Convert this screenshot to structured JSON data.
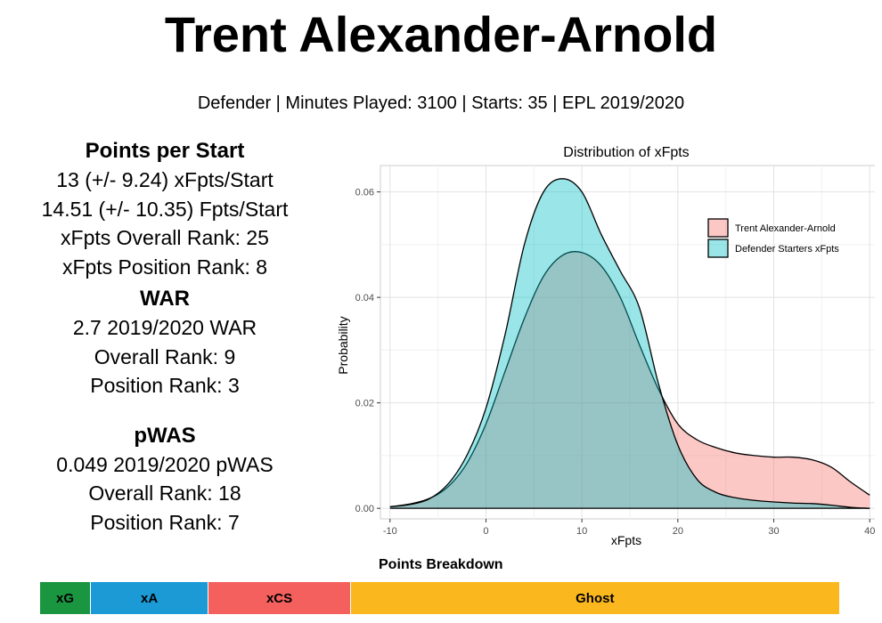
{
  "header": {
    "title": "Trent Alexander-Arnold",
    "subtitle": "Defender | Minutes Played: 3100 | Starts: 35 | EPL 2019/2020"
  },
  "stats": {
    "points_per_start": {
      "heading": "Points per Start",
      "lines": [
        "13 (+/- 9.24) xFpts/Start",
        "14.51 (+/- 10.35) Fpts/Start",
        "xFpts Overall Rank: 25",
        "xFpts Position Rank: 8"
      ]
    },
    "war": {
      "heading": "WAR",
      "lines": [
        "2.7 2019/2020 WAR",
        "Overall Rank: 9",
        "Position Rank: 3"
      ]
    },
    "pwas": {
      "heading": "pWAS",
      "lines": [
        "0.049 2019/2020 pWAS",
        "Overall Rank: 18",
        "Position Rank: 7"
      ]
    }
  },
  "chart_data": {
    "type": "area",
    "title": "Distribution of xFpts",
    "xlabel": "xFpts",
    "ylabel": "Probability",
    "xlim": [
      -11,
      41
    ],
    "ylim": [
      -0.002,
      0.065
    ],
    "xticks": [
      -10,
      0,
      10,
      20,
      30,
      40
    ],
    "yticks": [
      0.0,
      0.02,
      0.04,
      0.06
    ],
    "xtick_labels": [
      "-10",
      "0",
      "10",
      "20",
      "30",
      "40"
    ],
    "ytick_labels": [
      "0.00",
      "0.02",
      "0.04",
      "0.06"
    ],
    "grid": true,
    "legend_position": "top-right",
    "series": [
      {
        "name": "Trent Alexander-Arnold",
        "color": "#F8766D",
        "x": [
          -10,
          -8,
          -6,
          -4,
          -2,
          0,
          2,
          4,
          6,
          8,
          10,
          12,
          14,
          16,
          18,
          20,
          22,
          24,
          26,
          28,
          30,
          32,
          34,
          36,
          38,
          40
        ],
        "y": [
          0.0003,
          0.0008,
          0.0018,
          0.004,
          0.0085,
          0.016,
          0.026,
          0.036,
          0.044,
          0.048,
          0.0485,
          0.046,
          0.04,
          0.031,
          0.0225,
          0.016,
          0.013,
          0.0115,
          0.0105,
          0.01,
          0.0097,
          0.0097,
          0.0092,
          0.0078,
          0.005,
          0.0025
        ]
      },
      {
        "name": "Defender Starters xFpts",
        "color": "#00BFC4",
        "x": [
          -10,
          -8,
          -6,
          -4,
          -2,
          0,
          2,
          4,
          6,
          8,
          10,
          12,
          14,
          16,
          18,
          20,
          22,
          24,
          26,
          28,
          30,
          32,
          34,
          36,
          38,
          40
        ],
        "y": [
          0.0003,
          0.0007,
          0.0017,
          0.0045,
          0.01,
          0.019,
          0.033,
          0.05,
          0.06,
          0.0625,
          0.06,
          0.052,
          0.045,
          0.038,
          0.0235,
          0.012,
          0.0055,
          0.003,
          0.002,
          0.0015,
          0.0012,
          0.001,
          0.0009,
          0.0006,
          0.0002,
          0.0
        ]
      }
    ]
  },
  "breakdown": {
    "title": "Points Breakdown",
    "segments": [
      {
        "label": "xG",
        "fraction": 0.0636,
        "color": "#1A9641"
      },
      {
        "label": "xA",
        "fraction": 0.147,
        "color": "#1B9AD6"
      },
      {
        "label": "xCS",
        "fraction": 0.178,
        "color": "#F4605E"
      },
      {
        "label": "Ghost",
        "fraction": 0.611,
        "color": "#FBB81E"
      }
    ]
  }
}
